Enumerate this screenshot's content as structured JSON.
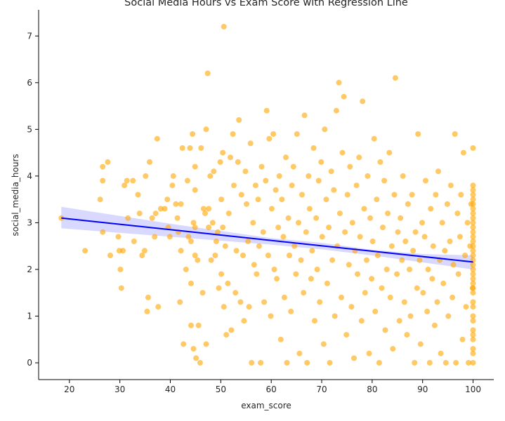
{
  "chart_data": {
    "type": "scatter",
    "title": "Social Media Hours vs Exam Score with Regression Line",
    "xlabel": "exam_score",
    "ylabel": "social_media_hours",
    "xlim": [
      13.9,
      104.1
    ],
    "ylim": [
      -0.36,
      7.56
    ],
    "xticks": [
      20,
      30,
      40,
      50,
      60,
      70,
      80,
      90,
      100
    ],
    "yticks": [
      0,
      1,
      2,
      3,
      4,
      5,
      6,
      7
    ],
    "grid": false,
    "legend": "none",
    "point_color": "#FFA500",
    "point_alpha": 0.6,
    "regression": {
      "color": "#0000FF",
      "ci_color": "#0000FF",
      "line": [
        [
          18.4,
          3.1
        ],
        [
          100,
          2.16
        ]
      ],
      "ci_upper": [
        [
          18.4,
          3.34
        ],
        [
          40,
          2.98
        ],
        [
          60,
          2.67
        ],
        [
          70,
          2.57
        ],
        [
          80,
          2.42
        ],
        [
          90,
          2.33
        ],
        [
          100,
          2.3
        ]
      ],
      "ci_lower": [
        [
          18.4,
          2.88
        ],
        [
          40,
          2.7
        ],
        [
          60,
          2.53
        ],
        [
          70,
          2.43
        ],
        [
          80,
          2.3
        ],
        [
          90,
          2.15
        ],
        [
          100,
          2.0
        ]
      ]
    },
    "points": [
      [
        18.4,
        3.1
      ],
      [
        23.1,
        2.4
      ],
      [
        26.1,
        3.5
      ],
      [
        26.6,
        4.2
      ],
      [
        26.6,
        3.9
      ],
      [
        26.6,
        2.8
      ],
      [
        27.6,
        4.3
      ],
      [
        28.1,
        2.3
      ],
      [
        29.7,
        2.7
      ],
      [
        29.9,
        2.4
      ],
      [
        30.1,
        2.0
      ],
      [
        30.3,
        1.6
      ],
      [
        30.6,
        2.4
      ],
      [
        30.9,
        3.8
      ],
      [
        31.4,
        3.9
      ],
      [
        31.6,
        3.1
      ],
      [
        32.6,
        3.9
      ],
      [
        32.8,
        2.6
      ],
      [
        33.6,
        3.6
      ],
      [
        33.9,
        3.2
      ],
      [
        34.4,
        2.3
      ],
      [
        34.9,
        2.4
      ],
      [
        35.1,
        4.0
      ],
      [
        35.4,
        1.1
      ],
      [
        35.6,
        1.4
      ],
      [
        35.9,
        4.3
      ],
      [
        36.4,
        3.1
      ],
      [
        36.9,
        2.7
      ],
      [
        37.1,
        3.2
      ],
      [
        37.4,
        4.8
      ],
      [
        37.6,
        1.2
      ],
      [
        38.1,
        3.3
      ],
      [
        38.9,
        3.3
      ],
      [
        39.4,
        3.5
      ],
      [
        39.6,
        2.9
      ],
      [
        39.9,
        2.7
      ],
      [
        40.4,
        3.8
      ],
      [
        40.6,
        4.0
      ],
      [
        41.1,
        3.4
      ],
      [
        41.4,
        3.1
      ],
      [
        41.6,
        2.8
      ],
      [
        41.9,
        1.3
      ],
      [
        42.1,
        3.4
      ],
      [
        42.1,
        2.4
      ],
      [
        42.4,
        4.6
      ],
      [
        42.6,
        0.4
      ],
      [
        43.1,
        2.0
      ],
      [
        43.4,
        3.9
      ],
      [
        43.6,
        2.7
      ],
      [
        43.9,
        4.6
      ],
      [
        44.1,
        0.8
      ],
      [
        44.1,
        1.7
      ],
      [
        44.1,
        2.6
      ],
      [
        44.4,
        4.9
      ],
      [
        44.6,
        3.0
      ],
      [
        44.6,
        0.3
      ],
      [
        44.9,
        4.2
      ],
      [
        44.9,
        3.7
      ],
      [
        44.9,
        2.9
      ],
      [
        44.9,
        2.3
      ],
      [
        45.1,
        0.1
      ],
      [
        45.4,
        2.2
      ],
      [
        45.6,
        0.8
      ],
      [
        45.9,
        0.0
      ],
      [
        46.1,
        4.6
      ],
      [
        46.4,
        1.5
      ],
      [
        46.6,
        3.3
      ],
      [
        46.9,
        3.2
      ],
      [
        47.1,
        5.0
      ],
      [
        47.1,
        0.4
      ],
      [
        47.4,
        6.2
      ],
      [
        47.6,
        3.3
      ],
      [
        47.6,
        2.9
      ],
      [
        47.9,
        4.0
      ],
      [
        48.1,
        2.2
      ],
      [
        48.4,
        3.0
      ],
      [
        48.6,
        4.1
      ],
      [
        48.9,
        2.3
      ],
      [
        49.1,
        2.6
      ],
      [
        49.4,
        2.8
      ],
      [
        49.6,
        1.6
      ],
      [
        49.9,
        4.3
      ],
      [
        50.1,
        3.5
      ],
      [
        50.1,
        1.9
      ],
      [
        50.4,
        4.5
      ],
      [
        50.4,
        2.9
      ],
      [
        50.6,
        1.2
      ],
      [
        50.6,
        7.2
      ],
      [
        50.9,
        2.5
      ],
      [
        51.1,
        0.6
      ],
      [
        51.4,
        1.7
      ],
      [
        51.6,
        3.2
      ],
      [
        51.9,
        4.4
      ],
      [
        52.1,
        0.7
      ],
      [
        52.4,
        4.9
      ],
      [
        52.6,
        3.8
      ],
      [
        52.9,
        1.5
      ],
      [
        53.1,
        2.4
      ],
      [
        53.4,
        4.3
      ],
      [
        53.6,
        5.2
      ],
      [
        53.9,
        1.3
      ],
      [
        54.1,
        3.6
      ],
      [
        54.4,
        2.3
      ],
      [
        54.6,
        0.9
      ],
      [
        54.9,
        4.1
      ],
      [
        55.1,
        3.4
      ],
      [
        55.4,
        2.6
      ],
      [
        55.6,
        1.2
      ],
      [
        55.9,
        4.7
      ],
      [
        56.1,
        0.0
      ],
      [
        56.4,
        3.0
      ],
      [
        56.6,
        2.1
      ],
      [
        56.9,
        3.8
      ],
      [
        57.1,
        1.9
      ],
      [
        57.4,
        3.5
      ],
      [
        57.6,
        2.5
      ],
      [
        57.9,
        0.0
      ],
      [
        58.1,
        4.2
      ],
      [
        58.4,
        2.8
      ],
      [
        58.6,
        1.3
      ],
      [
        58.9,
        3.9
      ],
      [
        59.1,
        5.4
      ],
      [
        59.4,
        2.3
      ],
      [
        59.6,
        4.8
      ],
      [
        59.9,
        1.0
      ],
      [
        60.1,
        3.3
      ],
      [
        60.4,
        4.9
      ],
      [
        60.6,
        2.0
      ],
      [
        60.9,
        3.7
      ],
      [
        61.1,
        1.8
      ],
      [
        61.4,
        2.9
      ],
      [
        61.6,
        4.0
      ],
      [
        61.9,
        0.5
      ],
      [
        62.1,
        3.5
      ],
      [
        62.4,
        2.7
      ],
      [
        62.6,
        1.4
      ],
      [
        62.9,
        4.4
      ],
      [
        63.1,
        0.0
      ],
      [
        63.4,
        3.1
      ],
      [
        63.6,
        2.3
      ],
      [
        63.9,
        1.1
      ],
      [
        64.1,
        3.8
      ],
      [
        64.4,
        4.2
      ],
      [
        64.6,
        2.5
      ],
      [
        64.9,
        1.9
      ],
      [
        65.1,
        4.9
      ],
      [
        65.4,
        3.0
      ],
      [
        65.6,
        0.2
      ],
      [
        65.9,
        2.2
      ],
      [
        66.1,
        3.6
      ],
      [
        66.4,
        1.5
      ],
      [
        66.6,
        5.3
      ],
      [
        66.9,
        2.8
      ],
      [
        67.1,
        0.0
      ],
      [
        67.4,
        4.0
      ],
      [
        67.6,
        3.3
      ],
      [
        67.9,
        1.8
      ],
      [
        68.1,
        2.4
      ],
      [
        68.4,
        4.6
      ],
      [
        68.6,
        0.9
      ],
      [
        68.9,
        3.1
      ],
      [
        69.1,
        2.0
      ],
      [
        69.4,
        3.9
      ],
      [
        69.6,
        1.3
      ],
      [
        69.9,
        4.3
      ],
      [
        70.1,
        2.7
      ],
      [
        70.4,
        0.4
      ],
      [
        70.6,
        5.0
      ],
      [
        70.9,
        3.5
      ],
      [
        71.1,
        1.7
      ],
      [
        71.4,
        2.9
      ],
      [
        71.6,
        0.0
      ],
      [
        71.9,
        4.1
      ],
      [
        72.1,
        2.2
      ],
      [
        72.4,
        3.7
      ],
      [
        72.6,
        1.0
      ],
      [
        72.9,
        5.4
      ],
      [
        73.1,
        2.5
      ],
      [
        73.4,
        6.0
      ],
      [
        73.6,
        3.2
      ],
      [
        73.9,
        1.4
      ],
      [
        74.1,
        4.5
      ],
      [
        74.4,
        5.7
      ],
      [
        74.6,
        2.8
      ],
      [
        74.9,
        0.6
      ],
      [
        75.1,
        3.6
      ],
      [
        75.4,
        2.1
      ],
      [
        75.6,
        4.2
      ],
      [
        75.9,
        1.2
      ],
      [
        76.1,
        3.0
      ],
      [
        76.4,
        0.1
      ],
      [
        76.6,
        2.4
      ],
      [
        76.9,
        3.8
      ],
      [
        77.1,
        1.9
      ],
      [
        77.4,
        4.4
      ],
      [
        77.6,
        2.7
      ],
      [
        77.9,
        0.9
      ],
      [
        78.1,
        5.6
      ],
      [
        78.4,
        3.3
      ],
      [
        78.6,
        1.5
      ],
      [
        78.9,
        2.2
      ],
      [
        79.1,
        4.0
      ],
      [
        79.4,
        0.2
      ],
      [
        79.6,
        3.1
      ],
      [
        79.9,
        1.8
      ],
      [
        80.1,
        2.6
      ],
      [
        80.4,
        4.8
      ],
      [
        80.6,
        1.1
      ],
      [
        80.9,
        3.5
      ],
      [
        81.1,
        2.3
      ],
      [
        81.4,
        0.0
      ],
      [
        81.6,
        4.3
      ],
      [
        81.9,
        1.6
      ],
      [
        82.1,
        2.9
      ],
      [
        82.4,
        3.9
      ],
      [
        82.6,
        0.7
      ],
      [
        82.9,
        2.0
      ],
      [
        83.1,
        3.2
      ],
      [
        83.4,
        4.5
      ],
      [
        83.6,
        1.4
      ],
      [
        83.9,
        2.5
      ],
      [
        84.1,
        0.3
      ],
      [
        84.4,
        3.6
      ],
      [
        84.6,
        6.1
      ],
      [
        84.9,
        1.9
      ],
      [
        85.1,
        2.8
      ],
      [
        85.4,
        0.9
      ],
      [
        85.6,
        3.1
      ],
      [
        85.9,
        2.2
      ],
      [
        86.1,
        4.0
      ],
      [
        86.4,
        1.3
      ],
      [
        86.6,
        2.6
      ],
      [
        86.9,
        0.6
      ],
      [
        87.1,
        3.4
      ],
      [
        87.4,
        2.0
      ],
      [
        87.6,
        1.0
      ],
      [
        87.9,
        3.6
      ],
      [
        88.1,
        2.4
      ],
      [
        88.4,
        0.0
      ],
      [
        88.6,
        2.8
      ],
      [
        88.9,
        1.6
      ],
      [
        89.1,
        4.9
      ],
      [
        89.4,
        2.2
      ],
      [
        89.6,
        0.4
      ],
      [
        89.9,
        3.0
      ],
      [
        90.1,
        1.5
      ],
      [
        90.4,
        2.7
      ],
      [
        90.6,
        3.9
      ],
      [
        90.9,
        1.1
      ],
      [
        91.1,
        2.0
      ],
      [
        91.4,
        0.0
      ],
      [
        91.6,
        3.3
      ],
      [
        91.9,
        1.8
      ],
      [
        92.1,
        2.5
      ],
      [
        92.4,
        0.8
      ],
      [
        92.6,
        3.6
      ],
      [
        92.9,
        1.3
      ],
      [
        93.1,
        4.1
      ],
      [
        93.4,
        2.2
      ],
      [
        93.6,
        0.2
      ],
      [
        93.9,
        3.0
      ],
      [
        94.1,
        1.7
      ],
      [
        94.4,
        2.4
      ],
      [
        94.6,
        0.0
      ],
      [
        94.9,
        3.4
      ],
      [
        95.1,
        1.0
      ],
      [
        95.4,
        2.6
      ],
      [
        95.6,
        3.8
      ],
      [
        95.9,
        1.4
      ],
      [
        96.1,
        2.1
      ],
      [
        96.4,
        4.9
      ],
      [
        96.6,
        0.0
      ],
      [
        96.9,
        3.2
      ],
      [
        97.1,
        1.9
      ],
      [
        97.4,
        2.7
      ],
      [
        97.6,
        3.6
      ],
      [
        97.9,
        0.5
      ],
      [
        98.1,
        4.5
      ],
      [
        98.4,
        2.3
      ],
      [
        98.6,
        1.2
      ],
      [
        98.9,
        3.0
      ],
      [
        99.1,
        0.0
      ],
      [
        99.4,
        2.5
      ],
      [
        99.6,
        3.4
      ],
      [
        99.9,
        1.6
      ],
      [
        100,
        4.6
      ],
      [
        100,
        3.8
      ],
      [
        100,
        3.7
      ],
      [
        100,
        3.6
      ],
      [
        100,
        3.5
      ],
      [
        100,
        3.4
      ],
      [
        100,
        3.3
      ],
      [
        100,
        3.2
      ],
      [
        100,
        3.1
      ],
      [
        100,
        3.0
      ],
      [
        100,
        2.9
      ],
      [
        100,
        2.8
      ],
      [
        100,
        2.7
      ],
      [
        100,
        2.6
      ],
      [
        100,
        2.5
      ],
      [
        100,
        2.4
      ],
      [
        100,
        2.3
      ],
      [
        100,
        2.2
      ],
      [
        100,
        2.1
      ],
      [
        100,
        2.0
      ],
      [
        100,
        1.9
      ],
      [
        100,
        1.8
      ],
      [
        100,
        1.7
      ],
      [
        100,
        1.6
      ],
      [
        100,
        1.5
      ],
      [
        100,
        1.3
      ],
      [
        100,
        1.2
      ],
      [
        100,
        1.0
      ],
      [
        100,
        0.9
      ],
      [
        100,
        0.7
      ],
      [
        100,
        0.6
      ],
      [
        100,
        0.5
      ],
      [
        100,
        0.3
      ],
      [
        100,
        0.2
      ],
      [
        100,
        0.0
      ]
    ]
  }
}
